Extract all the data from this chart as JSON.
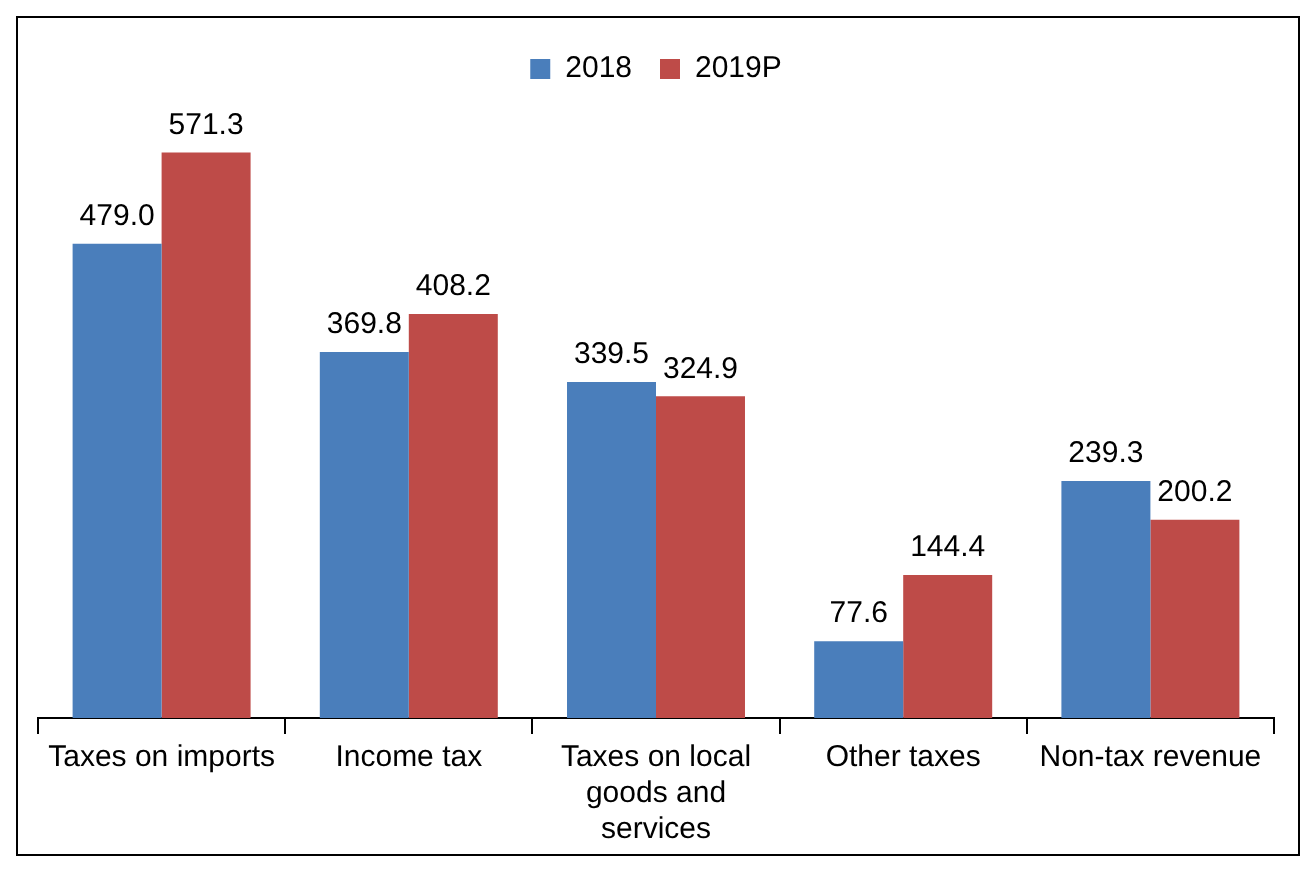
{
  "chart_data": {
    "type": "bar",
    "categories": [
      "Taxes on imports",
      "Income tax",
      "Taxes on local goods and services",
      "Other taxes",
      "Non-tax revenue"
    ],
    "series": [
      {
        "name": "2018",
        "color": "#4a7ebb",
        "values": [
          479.0,
          369.8,
          339.5,
          77.6,
          239.3
        ],
        "value_labels": [
          "479.0",
          "369.8",
          "339.5",
          "77.6",
          "239.3"
        ]
      },
      {
        "name": "2019P",
        "color": "#be4b48",
        "values": [
          571.3,
          408.2,
          324.9,
          144.4,
          200.2
        ],
        "value_labels": [
          "571.3",
          "408.2",
          "324.9",
          "144.4",
          "200.2"
        ]
      }
    ],
    "legend": "top",
    "grid": false
  }
}
